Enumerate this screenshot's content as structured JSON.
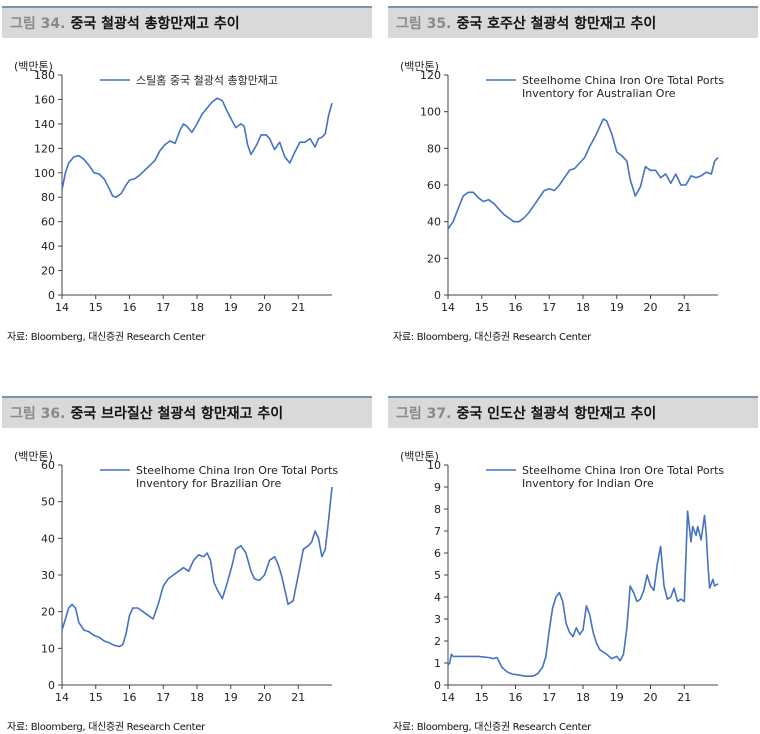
{
  "series_color": "#4472c4",
  "panels": [
    {
      "figure_number": "그림 34.",
      "figure_title": "중국 철광석 총항만재고 추이",
      "source": "자료: Bloomberg, 대신증권 Research Center",
      "chart_data": {
        "type": "line",
        "title": "중국 철광석 총항만재고 추이",
        "unit": "(백만톤)",
        "legend": [
          "스틸홈 중국 철광석 총항만재고"
        ],
        "xlim": [
          14,
          22
        ],
        "ylim": [
          0,
          180
        ],
        "x_ticks": [
          "14",
          "15",
          "16",
          "17",
          "18",
          "19",
          "20",
          "21"
        ],
        "y_ticks": [
          0,
          20,
          40,
          60,
          80,
          100,
          120,
          140,
          160,
          180
        ],
        "series": [
          {
            "name": "스틸홈 중국 철광석 총항만재고",
            "x": [
              14.0,
              14.1,
              14.2,
              14.35,
              14.5,
              14.65,
              14.8,
              14.95,
              15.1,
              15.25,
              15.4,
              15.5,
              15.6,
              15.75,
              15.9,
              16.0,
              16.15,
              16.3,
              16.45,
              16.6,
              16.75,
              16.9,
              17.05,
              17.2,
              17.35,
              17.5,
              17.6,
              17.7,
              17.85,
              18.0,
              18.15,
              18.3,
              18.45,
              18.6,
              18.75,
              18.9,
              19.05,
              19.15,
              19.3,
              19.4,
              19.5,
              19.6,
              19.75,
              19.9,
              20.05,
              20.15,
              20.3,
              20.45,
              20.6,
              20.75,
              20.9,
              21.05,
              21.2,
              21.35,
              21.5,
              21.6,
              21.7,
              21.8,
              21.9,
              22.0
            ],
            "y": [
              86,
              100,
              108,
              113,
              114,
              111,
              106,
              100,
              99,
              95,
              87,
              81,
              80,
              83,
              90,
              94,
              95,
              98,
              102,
              106,
              110,
              118,
              123,
              126,
              124,
              135,
              140,
              138,
              133,
              140,
              148,
              153,
              158,
              161,
              159,
              150,
              142,
              137,
              140,
              138,
              123,
              115,
              122,
              131,
              131,
              128,
              119,
              125,
              113,
              108,
              117,
              125,
              125,
              128,
              121,
              128,
              129,
              132,
              147,
              157
            ]
          }
        ]
      }
    },
    {
      "figure_number": "그림 35.",
      "figure_title": "중국 호주산 철광석 항만재고 추이",
      "source": "자료: Bloomberg, 대신증권 Research Center",
      "chart_data": {
        "type": "line",
        "title": "중국 호주산 철광석 항만재고 추이",
        "unit": "(백만톤)",
        "legend": [
          "Steelhome China Iron Ore Total Ports",
          "Inventory for Australian Ore"
        ],
        "xlim": [
          14,
          22
        ],
        "ylim": [
          0,
          120
        ],
        "x_ticks": [
          "14",
          "15",
          "16",
          "17",
          "18",
          "19",
          "20",
          "21"
        ],
        "y_ticks": [
          0,
          20,
          40,
          60,
          80,
          100,
          120
        ],
        "series": [
          {
            "name": "Steelhome China Iron Ore Total Ports Inventory for Australian Ore",
            "x": [
              14.0,
              14.15,
              14.3,
              14.45,
              14.6,
              14.75,
              14.9,
              15.05,
              15.2,
              15.35,
              15.5,
              15.65,
              15.8,
              15.95,
              16.1,
              16.25,
              16.4,
              16.55,
              16.7,
              16.85,
              17.0,
              17.15,
              17.3,
              17.45,
              17.6,
              17.75,
              17.9,
              18.05,
              18.2,
              18.35,
              18.5,
              18.6,
              18.7,
              18.85,
              19.0,
              19.15,
              19.3,
              19.4,
              19.55,
              19.7,
              19.85,
              20.0,
              20.15,
              20.3,
              20.45,
              20.6,
              20.75,
              20.9,
              21.05,
              21.2,
              21.35,
              21.5,
              21.65,
              21.8,
              21.9,
              22.0
            ],
            "y": [
              36,
              40,
              47,
              54,
              56,
              56,
              53,
              51,
              52,
              50,
              47,
              44,
              42,
              40,
              40,
              42,
              45,
              49,
              53,
              57,
              58,
              57,
              60,
              64,
              68,
              69,
              72,
              75,
              81,
              86,
              92,
              96,
              95,
              88,
              78,
              76,
              73,
              63,
              54,
              59,
              70,
              68,
              68,
              64,
              66,
              61,
              66,
              60,
              60,
              65,
              64,
              65,
              67,
              66,
              73,
              75
            ]
          }
        ]
      }
    },
    {
      "figure_number": "그림 36.",
      "figure_title": "중국 브라질산 철광석 항만재고 추이",
      "source": "자료: Bloomberg, 대신증권 Research Center",
      "chart_data": {
        "type": "line",
        "title": "중국 브라질산 철광석 항만재고 추이",
        "unit": "(백만톤)",
        "legend": [
          "Steelhome China Iron Ore Total Ports",
          "Inventory for Brazilian Ore"
        ],
        "xlim": [
          14,
          22
        ],
        "ylim": [
          0,
          60
        ],
        "x_ticks": [
          "14",
          "15",
          "16",
          "17",
          "18",
          "19",
          "20",
          "21"
        ],
        "y_ticks": [
          0,
          10,
          20,
          30,
          40,
          50,
          60
        ],
        "series": [
          {
            "name": "Steelhome China Iron Ore Total Ports Inventory for Brazilian Ore",
            "x": [
              14.0,
              14.1,
              14.2,
              14.3,
              14.4,
              14.5,
              14.65,
              14.8,
              14.95,
              15.1,
              15.25,
              15.4,
              15.55,
              15.7,
              15.8,
              15.9,
              16.0,
              16.1,
              16.25,
              16.4,
              16.55,
              16.7,
              16.85,
              17.0,
              17.15,
              17.3,
              17.45,
              17.6,
              17.75,
              17.9,
              18.05,
              18.2,
              18.3,
              18.4,
              18.5,
              18.6,
              18.75,
              18.9,
              19.05,
              19.15,
              19.3,
              19.45,
              19.6,
              19.7,
              19.85,
              20.0,
              20.15,
              20.3,
              20.4,
              20.5,
              20.6,
              20.7,
              20.85,
              21.0,
              21.15,
              21.3,
              21.4,
              21.5,
              21.6,
              21.7,
              21.8,
              21.9,
              22.0
            ],
            "y": [
              15,
              18,
              21,
              22,
              21,
              17,
              15,
              14.5,
              13.5,
              13,
              12,
              11.5,
              10.8,
              10.5,
              11,
              14,
              19,
              21,
              21,
              20,
              19,
              18,
              22,
              27,
              29,
              30,
              31,
              32,
              31,
              34,
              35.5,
              35,
              36,
              34,
              28,
              26,
              23.5,
              28,
              33,
              37,
              38,
              36,
              31,
              29,
              28.5,
              30,
              34,
              35,
              33,
              30,
              26,
              22,
              23,
              30,
              37,
              38,
              39,
              42,
              40,
              35,
              37,
              45,
              54
            ]
          }
        ]
      }
    },
    {
      "figure_number": "그림 37.",
      "figure_title": "중국 인도산 철광석 항만재고 추이",
      "source": "자료: Bloomberg, 대신증권 Research Center",
      "chart_data": {
        "type": "line",
        "title": "중국 인도산 철광석 항만재고 추이",
        "unit": "(백만톤)",
        "legend": [
          "Steelhome China Iron Ore Total Ports",
          "Inventory for Indian Ore"
        ],
        "xlim": [
          14,
          22
        ],
        "ylim": [
          0,
          10
        ],
        "x_ticks": [
          "14",
          "15",
          "16",
          "17",
          "18",
          "19",
          "20",
          "21"
        ],
        "y_ticks": [
          0,
          1,
          2,
          3,
          4,
          5,
          6,
          7,
          8,
          9,
          10
        ],
        "series": [
          {
            "name": "Steelhome China Iron Ore Total Ports Inventory for Indian Ore",
            "x": [
              14.0,
              14.05,
              14.1,
              14.15,
              14.3,
              14.6,
              14.9,
              15.2,
              15.35,
              15.45,
              15.6,
              15.75,
              15.9,
              16.1,
              16.3,
              16.5,
              16.65,
              16.8,
              16.9,
              17.0,
              17.1,
              17.2,
              17.3,
              17.4,
              17.5,
              17.6,
              17.7,
              17.8,
              17.9,
              18.0,
              18.1,
              18.2,
              18.3,
              18.4,
              18.5,
              18.6,
              18.7,
              18.85,
              19.0,
              19.1,
              19.2,
              19.3,
              19.4,
              19.5,
              19.6,
              19.7,
              19.8,
              19.9,
              20.0,
              20.1,
              20.2,
              20.3,
              20.4,
              20.5,
              20.6,
              20.7,
              20.8,
              20.9,
              21.0,
              21.1,
              21.2,
              21.25,
              21.3,
              21.35,
              21.4,
              21.5,
              21.6,
              21.65,
              21.7,
              21.75,
              21.85,
              21.9,
              22.0
            ],
            "y": [
              0.9,
              1.0,
              1.4,
              1.3,
              1.3,
              1.3,
              1.3,
              1.25,
              1.2,
              1.25,
              0.8,
              0.6,
              0.5,
              0.45,
              0.4,
              0.4,
              0.5,
              0.8,
              1.3,
              2.5,
              3.5,
              4.0,
              4.2,
              3.8,
              2.8,
              2.4,
              2.2,
              2.6,
              2.3,
              2.5,
              3.6,
              3.2,
              2.4,
              1.9,
              1.6,
              1.5,
              1.4,
              1.2,
              1.3,
              1.1,
              1.4,
              2.6,
              4.5,
              4.2,
              3.8,
              3.9,
              4.3,
              5.0,
              4.5,
              4.3,
              5.5,
              6.3,
              4.5,
              3.9,
              4.0,
              4.4,
              3.8,
              3.9,
              3.8,
              7.9,
              6.5,
              7.2,
              7.0,
              6.8,
              7.2,
              6.6,
              7.7,
              6.9,
              5.5,
              4.4,
              4.8,
              4.5,
              4.6
            ]
          }
        ]
      }
    }
  ]
}
